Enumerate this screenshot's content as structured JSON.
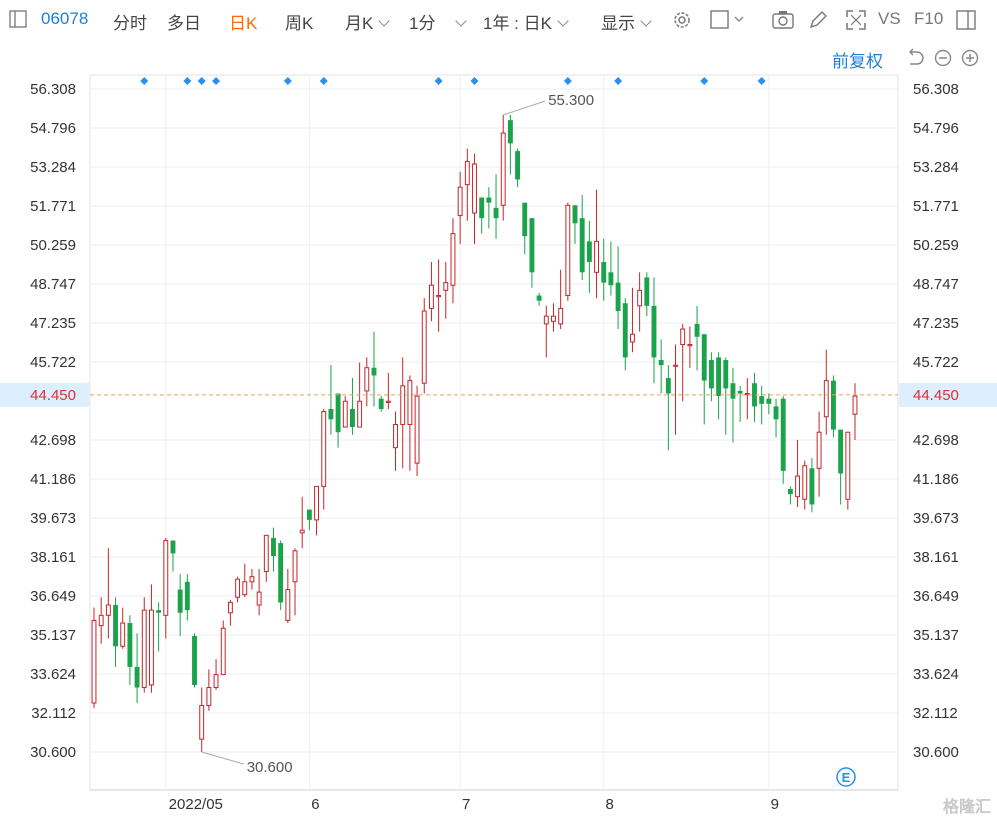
{
  "toolbar": {
    "code": "06078",
    "intraday": "分时",
    "multiday": "多日",
    "daily": "日K",
    "weekly": "周K",
    "monthly": "月K",
    "minute": "1分",
    "range": "1年 : 日K",
    "display": "显示",
    "vs": "VS",
    "f10": "F10"
  },
  "adjust_label": "前复权",
  "colors": {
    "up": "#c6242a",
    "down": "#1aa34a",
    "accent": "#ff6a00",
    "link": "#1e7fd9",
    "marker": "#2a8ff0",
    "last_price_bg": "#ddeeff"
  },
  "chart_data": {
    "type": "candlestick",
    "ylim": [
      29.8,
      57.0
    ],
    "y_ticks": [
      "56.308",
      "54.796",
      "53.284",
      "51.771",
      "50.259",
      "48.747",
      "47.235",
      "45.722",
      "42.698",
      "41.186",
      "39.673",
      "38.161",
      "36.649",
      "35.137",
      "33.624",
      "32.112",
      "30.600"
    ],
    "y_tick_values": [
      56.308,
      54.796,
      53.284,
      51.771,
      50.259,
      48.747,
      47.235,
      45.722,
      42.698,
      41.186,
      39.673,
      38.161,
      36.649,
      35.137,
      33.624,
      32.112,
      30.6
    ],
    "current_price": "44.450",
    "current_price_value": 44.45,
    "max_label": "55.300",
    "max_value": 55.3,
    "min_label": "30.600",
    "min_value": 30.6,
    "x_labels": [
      {
        "label": "2022/05",
        "index": 10
      },
      {
        "label": "6",
        "index": 30
      },
      {
        "label": "7",
        "index": 51
      },
      {
        "label": "8",
        "index": 71
      },
      {
        "label": "9",
        "index": 94
      }
    ],
    "marker_indices": [
      7,
      13,
      15,
      17,
      27,
      32,
      48,
      53,
      66,
      73,
      85,
      93
    ],
    "candles": [
      [
        32.5,
        35.7,
        36.2,
        32.3
      ],
      [
        35.5,
        35.9,
        36.6,
        34.8
      ],
      [
        35.9,
        36.3,
        38.5,
        35.0
      ],
      [
        36.3,
        34.7,
        36.6,
        33.9
      ],
      [
        34.7,
        35.6,
        36.2,
        34.6
      ],
      [
        35.6,
        33.9,
        35.9,
        33.2
      ],
      [
        33.9,
        33.1,
        35.2,
        32.5
      ],
      [
        33.1,
        36.1,
        36.6,
        32.9
      ],
      [
        33.2,
        36.1,
        37.1,
        32.9
      ],
      [
        36.1,
        36.0,
        36.4,
        34.5
      ],
      [
        35.9,
        38.8,
        38.9,
        35.0
      ],
      [
        38.8,
        38.3,
        38.8,
        37.6
      ],
      [
        36.9,
        36.0,
        37.5,
        35.1
      ],
      [
        37.2,
        36.1,
        37.5,
        35.7
      ],
      [
        35.1,
        33.2,
        35.2,
        33.1
      ],
      [
        31.1,
        32.4,
        33.1,
        30.6
      ],
      [
        32.4,
        33.1,
        33.8,
        32.2
      ],
      [
        33.1,
        33.6,
        34.2,
        33.0
      ],
      [
        33.6,
        35.4,
        35.7,
        33.6
      ],
      [
        36.0,
        36.4,
        36.5,
        35.5
      ],
      [
        36.6,
        37.3,
        37.4,
        36.4
      ],
      [
        36.7,
        37.2,
        37.9,
        36.6
      ],
      [
        37.2,
        37.4,
        37.7,
        36.9
      ],
      [
        36.3,
        36.8,
        37.7,
        35.9
      ],
      [
        37.6,
        39.0,
        39.0,
        37.2
      ],
      [
        38.9,
        38.2,
        39.3,
        37.6
      ],
      [
        38.7,
        36.4,
        38.8,
        36.1
      ],
      [
        35.7,
        36.9,
        37.7,
        35.6
      ],
      [
        37.2,
        38.4,
        38.5,
        35.9
      ],
      [
        39.1,
        39.2,
        40.5,
        38.5
      ],
      [
        40.0,
        39.6,
        40.0,
        39.2
      ],
      [
        39.6,
        40.9,
        40.9,
        39.0
      ],
      [
        40.9,
        43.8,
        43.9,
        40.0
      ],
      [
        43.9,
        43.5,
        45.6,
        42.9
      ],
      [
        44.5,
        43.0,
        44.5,
        42.4
      ],
      [
        43.2,
        44.2,
        44.4,
        43.2
      ],
      [
        43.9,
        43.2,
        45.1,
        42.9
      ],
      [
        43.2,
        44.2,
        45.7,
        43.2
      ],
      [
        44.6,
        45.5,
        45.9,
        44.0
      ],
      [
        45.5,
        45.2,
        46.9,
        44.0
      ],
      [
        44.3,
        43.9,
        44.4,
        43.8
      ],
      [
        44.2,
        44.2,
        45.3,
        43.9
      ],
      [
        42.4,
        43.3,
        43.8,
        41.5
      ],
      [
        43.3,
        44.8,
        45.9,
        41.6
      ],
      [
        43.3,
        45.0,
        45.2,
        41.5
      ],
      [
        41.8,
        44.4,
        44.8,
        41.3
      ],
      [
        44.9,
        47.7,
        48.2,
        44.5
      ],
      [
        47.8,
        48.7,
        49.6,
        47.3
      ],
      [
        48.3,
        48.3,
        49.7,
        46.9
      ],
      [
        48.5,
        48.8,
        49.6,
        47.4
      ],
      [
        48.7,
        50.7,
        51.3,
        48.0
      ],
      [
        51.4,
        52.5,
        53.1,
        50.3
      ],
      [
        52.6,
        53.5,
        54.0,
        51.2
      ],
      [
        51.5,
        53.4,
        53.8,
        50.3
      ],
      [
        52.1,
        51.3,
        51.7,
        50.7
      ],
      [
        52.1,
        51.9,
        52.5,
        50.9
      ],
      [
        51.7,
        51.3,
        53.0,
        50.5
      ],
      [
        51.8,
        54.6,
        55.3,
        51.2
      ],
      [
        55.1,
        54.2,
        55.3,
        53.0
      ],
      [
        53.9,
        52.8,
        54.0,
        52.5
      ],
      [
        51.9,
        50.6,
        51.4,
        49.9
      ],
      [
        51.3,
        49.2,
        51.3,
        48.6
      ],
      [
        48.3,
        48.1,
        48.4,
        47.9
      ],
      [
        47.2,
        47.5,
        47.9,
        45.9
      ],
      [
        47.3,
        47.5,
        48.0,
        46.9
      ],
      [
        47.2,
        47.8,
        49.3,
        47.0
      ],
      [
        48.3,
        51.8,
        51.9,
        48.1
      ],
      [
        51.8,
        51.1,
        51.8,
        50.3
      ],
      [
        51.3,
        49.2,
        52.2,
        48.9
      ],
      [
        50.4,
        49.6,
        51.2,
        48.4
      ],
      [
        49.2,
        50.4,
        52.4,
        48.2
      ],
      [
        49.6,
        48.8,
        50.5,
        48.1
      ],
      [
        49.2,
        48.7,
        50.4,
        48.3
      ],
      [
        48.8,
        47.7,
        50.2,
        47.0
      ],
      [
        48.0,
        45.9,
        48.2,
        45.4
      ],
      [
        46.5,
        46.8,
        48.6,
        46.1
      ],
      [
        47.9,
        48.5,
        49.2,
        46.9
      ],
      [
        49.0,
        47.9,
        49.2,
        47.5
      ],
      [
        47.9,
        45.9,
        49.0,
        44.9
      ],
      [
        45.8,
        45.6,
        46.6,
        44.5
      ],
      [
        45.1,
        44.5,
        45.6,
        42.3
      ],
      [
        45.6,
        45.6,
        46.4,
        42.9
      ],
      [
        46.4,
        47.0,
        47.2,
        44.2
      ],
      [
        46.4,
        46.4,
        47.1,
        45.5
      ],
      [
        47.2,
        46.7,
        47.9,
        45.4
      ],
      [
        46.8,
        45.0,
        46.7,
        43.3
      ],
      [
        45.8,
        44.7,
        46.1,
        44.2
      ],
      [
        45.9,
        44.4,
        46.1,
        43.5
      ],
      [
        45.8,
        44.7,
        45.9,
        42.9
      ],
      [
        44.9,
        44.3,
        45.5,
        42.6
      ],
      [
        44.6,
        44.5,
        44.8,
        43.4
      ],
      [
        44.5,
        44.5,
        45.1,
        43.5
      ],
      [
        44.9,
        44.0,
        45.3,
        43.4
      ],
      [
        44.4,
        44.1,
        44.8,
        43.3
      ],
      [
        44.3,
        44.1,
        44.5,
        43.7
      ],
      [
        44.0,
        43.5,
        44.3,
        42.8
      ],
      [
        44.3,
        41.5,
        44.4,
        41.0
      ],
      [
        40.8,
        40.6,
        40.9,
        40.2
      ],
      [
        40.5,
        41.3,
        42.7,
        40.1
      ],
      [
        40.4,
        41.7,
        41.9,
        40.0
      ],
      [
        41.6,
        40.2,
        42.0,
        39.9
      ],
      [
        41.6,
        43.0,
        43.8,
        40.5
      ],
      [
        43.6,
        45.0,
        46.2,
        42.9
      ],
      [
        45.0,
        43.1,
        45.2,
        42.8
      ],
      [
        43.1,
        41.4,
        43.0,
        40.2
      ],
      [
        40.4,
        43.0,
        43.0,
        40.0
      ],
      [
        43.7,
        44.4,
        44.9,
        42.7
      ]
    ]
  }
}
